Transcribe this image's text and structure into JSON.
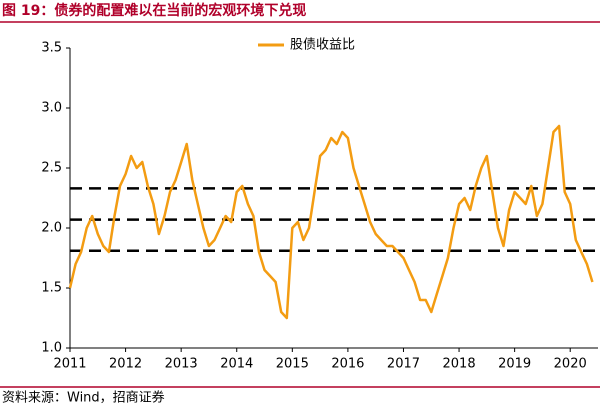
{
  "chart_data": {
    "type": "line",
    "title": "图 19：债券的配置难以在当前的宏观环境下兑现",
    "source": "资料来源：Wind，招商证券",
    "x": [
      2011.0,
      2011.1,
      2011.2,
      2011.3,
      2011.4,
      2011.5,
      2011.6,
      2011.7,
      2011.8,
      2011.9,
      2012.0,
      2012.1,
      2012.2,
      2012.3,
      2012.4,
      2012.5,
      2012.6,
      2012.7,
      2012.8,
      2012.9,
      2013.0,
      2013.1,
      2013.2,
      2013.3,
      2013.4,
      2013.5,
      2013.6,
      2013.7,
      2013.8,
      2013.9,
      2014.0,
      2014.1,
      2014.2,
      2014.3,
      2014.4,
      2014.5,
      2014.6,
      2014.7,
      2014.8,
      2014.9,
      2015.0,
      2015.1,
      2015.2,
      2015.3,
      2015.4,
      2015.5,
      2015.6,
      2015.7,
      2015.8,
      2015.9,
      2016.0,
      2016.1,
      2016.2,
      2016.3,
      2016.4,
      2016.5,
      2016.6,
      2016.7,
      2016.8,
      2016.9,
      2017.0,
      2017.1,
      2017.2,
      2017.3,
      2017.4,
      2017.5,
      2017.6,
      2017.7,
      2017.8,
      2017.9,
      2018.0,
      2018.1,
      2018.2,
      2018.3,
      2018.4,
      2018.5,
      2018.6,
      2018.7,
      2018.8,
      2018.9,
      2019.0,
      2019.1,
      2019.2,
      2019.3,
      2019.4,
      2019.5,
      2019.6,
      2019.7,
      2019.8,
      2019.9,
      2020.0,
      2020.1,
      2020.2,
      2020.3,
      2020.4
    ],
    "series": [
      {
        "name": "股债收益比",
        "color": "#f39c12",
        "values": [
          1.5,
          1.7,
          1.8,
          2.0,
          2.1,
          1.95,
          1.85,
          1.8,
          2.1,
          2.35,
          2.45,
          2.6,
          2.5,
          2.55,
          2.35,
          2.2,
          1.95,
          2.1,
          2.3,
          2.4,
          2.55,
          2.7,
          2.4,
          2.2,
          2.0,
          1.85,
          1.9,
          2.0,
          2.1,
          2.05,
          2.3,
          2.35,
          2.2,
          2.1,
          1.8,
          1.65,
          1.6,
          1.55,
          1.3,
          1.25,
          2.0,
          2.05,
          1.9,
          2.0,
          2.3,
          2.6,
          2.65,
          2.75,
          2.7,
          2.8,
          2.75,
          2.5,
          2.35,
          2.2,
          2.05,
          1.95,
          1.9,
          1.85,
          1.85,
          1.8,
          1.75,
          1.65,
          1.55,
          1.4,
          1.4,
          1.3,
          1.45,
          1.6,
          1.75,
          2.0,
          2.2,
          2.25,
          2.15,
          2.35,
          2.5,
          2.6,
          2.3,
          2.0,
          1.85,
          2.15,
          2.3,
          2.25,
          2.2,
          2.35,
          2.1,
          2.2,
          2.5,
          2.8,
          2.85,
          2.3,
          2.2,
          1.9,
          1.8,
          1.7,
          1.55
        ]
      }
    ],
    "reference_lines": [
      2.33,
      2.07,
      1.81
    ],
    "xlim": [
      2011,
      2020.5
    ],
    "xticks": [
      2011,
      2012,
      2013,
      2014,
      2015,
      2016,
      2017,
      2018,
      2019,
      2020
    ],
    "ylim": [
      1.0,
      3.5
    ],
    "yticks": [
      {
        "value": 1,
        "label": "1.0"
      },
      1.5,
      {
        "value": 2,
        "label": "2.0"
      },
      2.5,
      {
        "value": 3,
        "label": "3.0"
      },
      3.5
    ],
    "grid": false,
    "legend": "top"
  }
}
